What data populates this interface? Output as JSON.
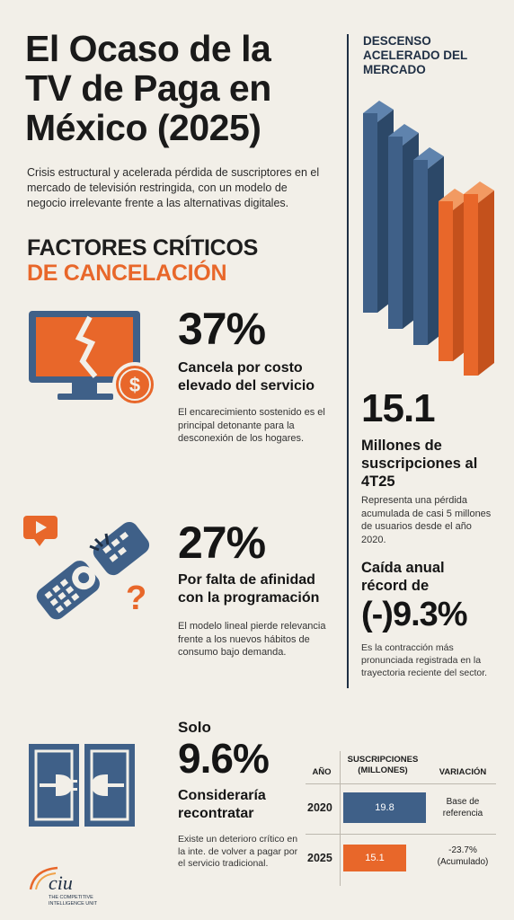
{
  "header": {
    "title_l1": "El Ocaso de la",
    "title_l2": "TV de Paga en",
    "title_l3": "México (2025)",
    "intro": "Crisis estructural y acelerada pérdida de suscriptores en el mercado de televisión restringida, con un modelo de negocio irrelevante frente a las alternativas digitales."
  },
  "factors": {
    "heading_l1": "FACTORES CRÍTICOS",
    "heading_l2": "DE CANCELACIÓN",
    "f1": {
      "pct": "37%",
      "label": "Cancela por costo elevado del servicio",
      "desc": "El encarecimiento sostenido es el principal detonante para la desconexión de los hogares."
    },
    "f2": {
      "pct": "27%",
      "label": "Por falta de afinidad con la programación",
      "desc": "El modelo lineal pierde relevancia frente a los nuevos hábitos de consumo bajo demanda."
    },
    "f3": {
      "pre": "Solo",
      "pct": "9.6%",
      "label": "Consideraría recontratar",
      "desc": "Existe un deterioro crítico en la inte. de volver a pagar por el servicio tradicional."
    }
  },
  "market": {
    "heading": "DESCENSO ACELERADO DEL MERCADO",
    "subs_value": "15.1",
    "subs_label": "Millones de suscripciones al 4T25",
    "subs_desc": "Representa una pérdida acumulada de casi 5 millones de usuarios desde el año 2020.",
    "drop_label": "Caída anual récord de",
    "drop_value": "(-)9.3%",
    "drop_desc": "Es la contracción más pronunciada registrada en la trayectoria reciente del sector."
  },
  "table": {
    "col_year": "AÑO",
    "col_subs": "SUSCRIPCIONES (MILLONES)",
    "col_var": "VARIACIÓN",
    "rows": [
      {
        "year": "2020",
        "value": "19.8",
        "var": "Base de referencia"
      },
      {
        "year": "2025",
        "value": "15.1",
        "var": "-23.7% (Acumulado)"
      }
    ]
  },
  "logo": {
    "name": "ciu",
    "tagline_l1": "THE COMPETITIVE",
    "tagline_l2": "INTELLIGENCE UNIT"
  },
  "colors": {
    "navy": "#3f6088",
    "orange": "#e8672a",
    "dark": "#1f2f44",
    "background": "#f2efe8"
  }
}
